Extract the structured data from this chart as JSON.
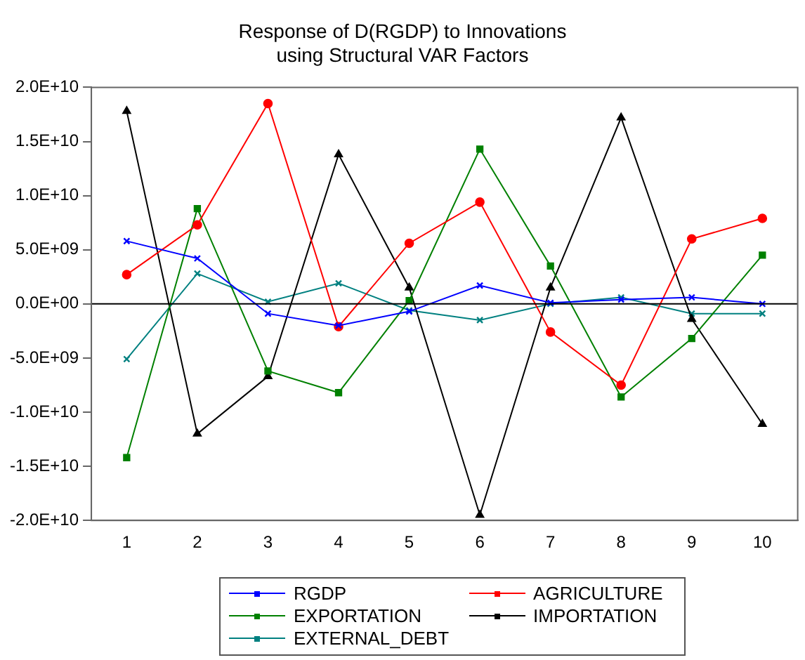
{
  "chart_data": {
    "type": "line",
    "title": "Response of D(RGDP) to Innovations\nusing Structural VAR Factors",
    "categories": [
      "1",
      "2",
      "3",
      "4",
      "5",
      "6",
      "7",
      "8",
      "9",
      "10"
    ],
    "series": [
      {
        "name": "RGDP",
        "color": "#0000ff",
        "marker": "cross",
        "values": [
          5800000000.0,
          4200000000.0,
          -900000000.0,
          -2000000000.0,
          -700000000.0,
          1700000000.0,
          100000000.0,
          400000000.0,
          600000000.0,
          0.0
        ]
      },
      {
        "name": "AGRICULTURE",
        "color": "#ff0000",
        "marker": "circle",
        "values": [
          2700000000.0,
          7300000000.0,
          18500000000.0,
          -2100000000.0,
          5600000000.0,
          9400000000.0,
          -2600000000.0,
          -7500000000.0,
          6000000000.0,
          7900000000.0
        ]
      },
      {
        "name": "EXPORTATION",
        "color": "#008000",
        "marker": "square",
        "values": [
          -14200000000.0,
          8800000000.0,
          -6200000000.0,
          -8200000000.0,
          300000000.0,
          14300000000.0,
          3500000000.0,
          -8600000000.0,
          -3200000000.0,
          4500000000.0
        ]
      },
      {
        "name": "IMPORTATION",
        "color": "#000000",
        "marker": "triangle",
        "values": [
          17800000000.0,
          -12000000000.0,
          -6700000000.0,
          13800000000.0,
          1500000000.0,
          -19500000000.0,
          1500000000.0,
          17200000000.0,
          -1400000000.0,
          -11100000000.0
        ]
      },
      {
        "name": "EXTERNAL_DEBT",
        "color": "#008080",
        "marker": "cross",
        "values": [
          -5100000000.0,
          2800000000.0,
          200000000.0,
          1900000000.0,
          -600000000.0,
          -1500000000.0,
          0.0,
          600000000.0,
          -900000000.0,
          -900000000.0
        ]
      }
    ],
    "ylim": [
      -20000000000.0,
      20000000000.0
    ],
    "yticks": [
      {
        "value": -20000000000.0,
        "label": "-2.0E+10"
      },
      {
        "value": -15000000000.0,
        "label": "-1.5E+10"
      },
      {
        "value": -10000000000.0,
        "label": "-1.0E+10"
      },
      {
        "value": -5000000000.0,
        "label": "-5.0E+09"
      },
      {
        "value": 0,
        "label": "0.0E+00"
      },
      {
        "value": 5000000000.0,
        "label": "5.0E+09"
      },
      {
        "value": 10000000000.0,
        "label": "1.0E+10"
      },
      {
        "value": 15000000000.0,
        "label": "1.5E+10"
      },
      {
        "value": 20000000000.0,
        "label": "2.0E+10"
      }
    ],
    "ref_lines": [
      {
        "axis": "y",
        "value": 0,
        "color": "#000000"
      }
    ],
    "grid": false,
    "legend": "bottom",
    "line_style": "solid"
  }
}
